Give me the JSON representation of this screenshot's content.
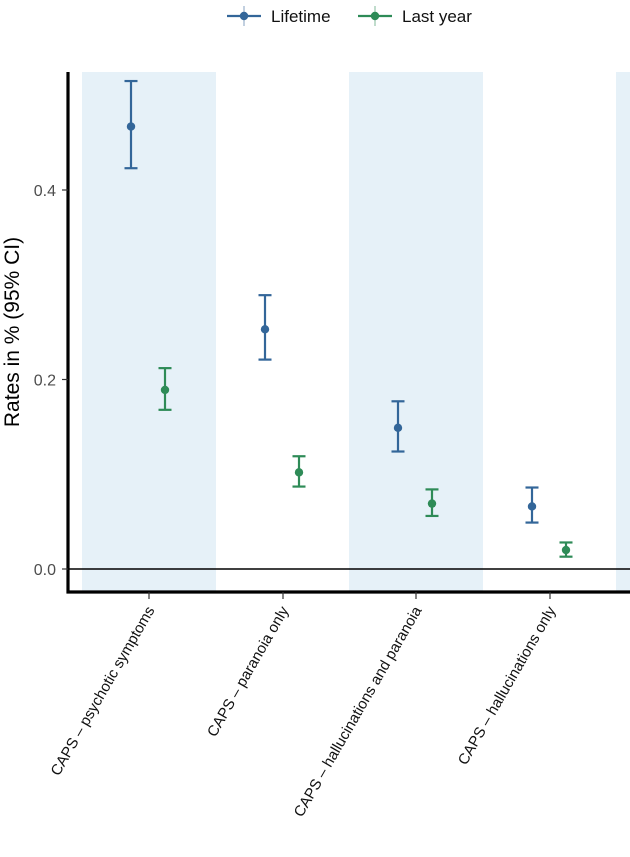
{
  "chart_data": {
    "type": "scatter",
    "subtype": "pointrange",
    "categories": [
      "CAPS – psychotic symptoms",
      "CAPS – paranoia only",
      "CAPS – hallucinations and paranoia",
      "CAPS – hallucinations only"
    ],
    "series": [
      {
        "name": "Lifetime",
        "color": "#336699",
        "values": [
          0.467,
          0.253,
          0.149,
          0.066
        ],
        "ci_low": [
          0.423,
          0.221,
          0.124,
          0.049
        ],
        "ci_high": [
          0.515,
          0.289,
          0.177,
          0.086
        ]
      },
      {
        "name": "Last year",
        "color": "#2e8b57",
        "values": [
          0.189,
          0.102,
          0.069,
          0.02
        ],
        "ci_low": [
          0.168,
          0.087,
          0.056,
          0.013
        ],
        "ci_high": [
          0.212,
          0.119,
          0.084,
          0.028
        ]
      }
    ],
    "ylabel": "Rates in % (95% CI)",
    "xlabel": "",
    "yticks": [
      0.0,
      0.2,
      0.4
    ],
    "ytick_labels": [
      "0.0",
      "0.2",
      "0.4"
    ],
    "ylim": [
      -0.024,
      0.525
    ],
    "reference_line": 0.0,
    "shaded_bands": "alternating categories",
    "band_color": "#e6f1f8",
    "legend": {
      "position": "top",
      "entries": [
        "Lifetime",
        "Last year"
      ]
    },
    "grid": false
  }
}
